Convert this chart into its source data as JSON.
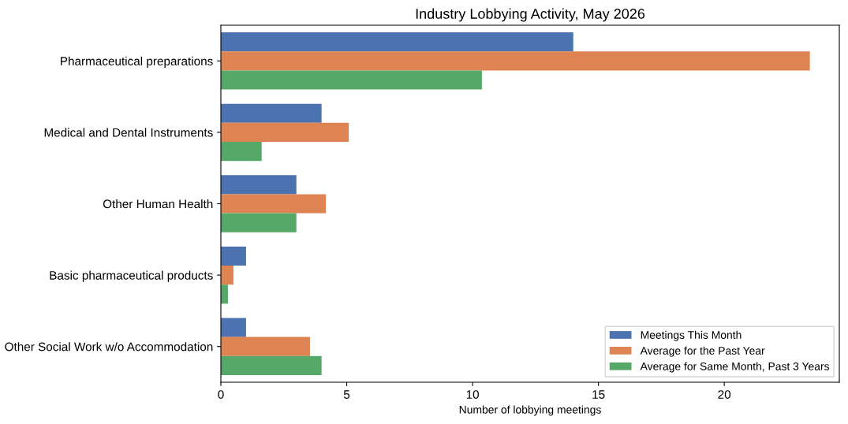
{
  "chart_data": {
    "type": "bar",
    "orientation": "horizontal",
    "title": "Industry Lobbying Activity, May 2026",
    "xlabel": "Number of lobbying meetings",
    "categories": [
      "Pharmaceutical preparations",
      "Medical and Dental Instruments",
      "Other Human Health",
      "Basic pharmaceutical products",
      "Other Social Work w/o Accommodation"
    ],
    "series": [
      {
        "name": "Meetings This Month",
        "color": "#4c72b0",
        "values": [
          14,
          4,
          3,
          1,
          1
        ]
      },
      {
        "name": "Average for the Past Year",
        "color": "#dd8452",
        "values": [
          23.4,
          5.08,
          4.17,
          0.5,
          3.54
        ]
      },
      {
        "name": "Average for Same Month, Past 3 Years",
        "color": "#55a868",
        "values": [
          10.37,
          1.62,
          3,
          0.28,
          4
        ]
      }
    ],
    "xlim": [
      0,
      24.57
    ],
    "xticks": [
      0,
      5,
      10,
      15,
      20
    ],
    "grid": false,
    "legend": "bottom right"
  }
}
